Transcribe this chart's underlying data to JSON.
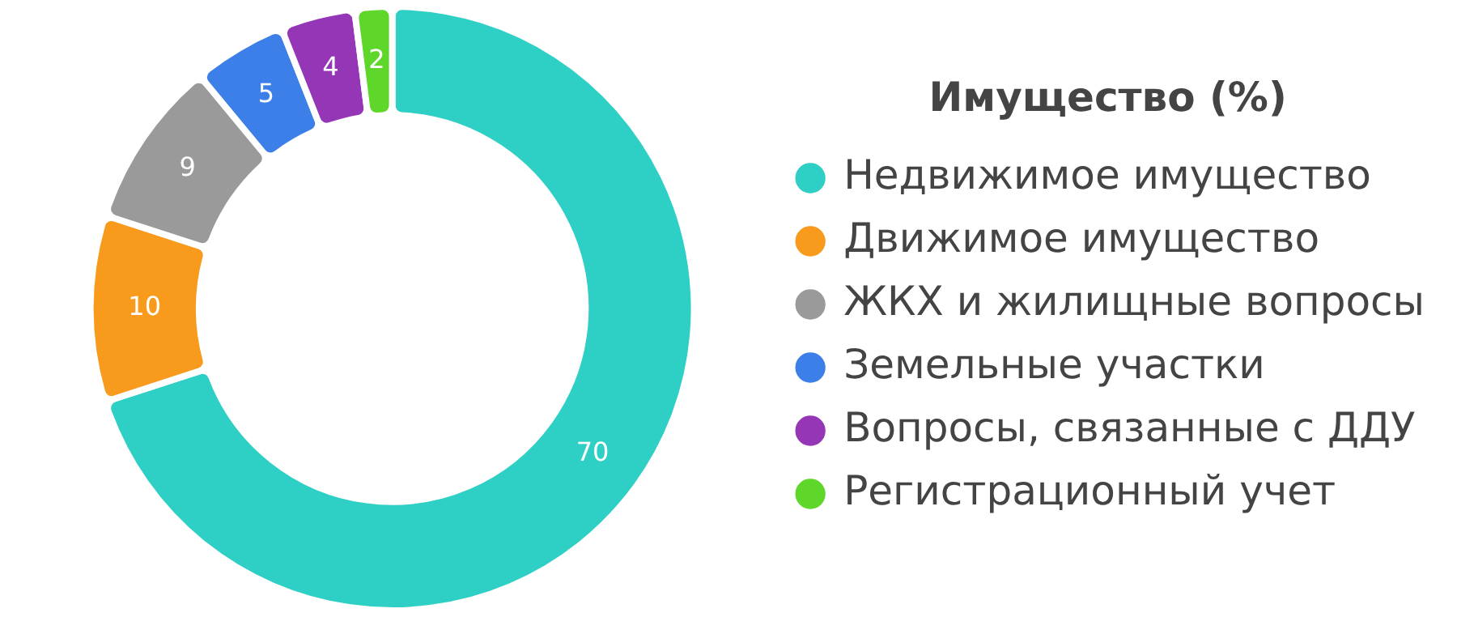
{
  "chart_data": {
    "type": "donut",
    "legend_title": "Имущество (%)",
    "legend": "right",
    "data_labels": true,
    "categories": [
      "Недвижимое имущество",
      "Движимое имущество",
      "ЖКХ и жилищные вопросы",
      "Земельные участки",
      "Вопросы, связанные с ДДУ",
      "Регистрационный учет"
    ],
    "values": [
      70,
      10,
      9,
      5,
      4,
      2
    ],
    "colors": [
      "#2ecfc4",
      "#f89a1c",
      "#9a9a9a",
      "#3d7fe8",
      "#9436b5",
      "#5fd62a"
    ]
  }
}
